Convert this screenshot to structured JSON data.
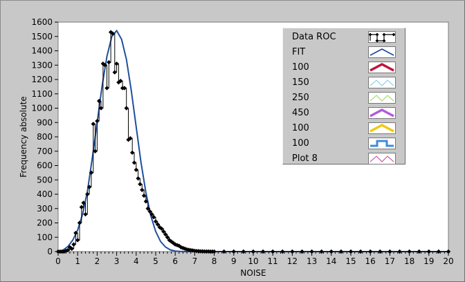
{
  "chart_data": {
    "type": "line",
    "xlabel": "NOISE",
    "ylabel": "Frequency absolute",
    "xlim": [
      0,
      20
    ],
    "ylim": [
      0,
      1600
    ],
    "x_ticks": [
      "0",
      "1",
      "2",
      "3",
      "4",
      "5",
      "6",
      "7",
      "8",
      "9",
      "10",
      "11",
      "12",
      "13",
      "14",
      "15",
      "16",
      "17",
      "18",
      "19",
      "20"
    ],
    "y_ticks": [
      "0",
      "100",
      "200",
      "300",
      "400",
      "500",
      "600",
      "700",
      "800",
      "900",
      "1000",
      "1100",
      "1200",
      "1300",
      "1400",
      "1500",
      "1600"
    ],
    "grid": false,
    "legend_position": "top-right",
    "legend": [
      {
        "label": "Data ROC",
        "color": "#000000",
        "style": "step-markers"
      },
      {
        "label": "FIT",
        "color": "#1f4e9c",
        "style": "line"
      },
      {
        "label": "100",
        "color": "#c0143c",
        "style": "thick-line"
      },
      {
        "label": "150",
        "color": "#78c8e6",
        "style": "thin-line"
      },
      {
        "label": "250",
        "color": "#96d25a",
        "style": "thin-line"
      },
      {
        "label": "450",
        "color": "#b45adc",
        "style": "thick-line"
      },
      {
        "label": "100",
        "color": "#f0c814",
        "style": "thick-line"
      },
      {
        "label": "100",
        "color": "#3c8cdc",
        "style": "step-line"
      },
      {
        "label": "Plot 8",
        "color": "#c83c96",
        "style": "thin-line"
      }
    ],
    "series": [
      {
        "name": "Data ROC",
        "color": "#000000",
        "x": [
          0,
          0.1,
          0.2,
          0.3,
          0.4,
          0.5,
          0.6,
          0.7,
          0.8,
          0.9,
          1.0,
          1.1,
          1.2,
          1.3,
          1.4,
          1.5,
          1.6,
          1.7,
          1.8,
          1.9,
          2.0,
          2.1,
          2.2,
          2.3,
          2.4,
          2.5,
          2.6,
          2.7,
          2.8,
          2.9,
          3.0,
          3.1,
          3.2,
          3.3,
          3.4,
          3.5,
          3.6,
          3.7,
          3.8,
          3.9,
          4.0,
          4.1,
          4.2,
          4.3,
          4.4,
          4.5,
          4.6,
          4.7,
          4.8,
          4.9,
          5.0,
          5.1,
          5.2,
          5.3,
          5.4,
          5.5,
          5.6,
          5.7,
          5.8,
          5.9,
          6.0,
          6.1,
          6.2,
          6.3,
          6.4,
          6.5,
          6.6,
          6.7,
          6.8,
          6.9,
          7.0,
          7.1,
          7.2,
          7.3,
          7.4,
          7.5,
          7.6,
          7.7,
          7.8,
          7.9,
          8.0,
          8.5,
          9.0,
          9.5,
          10.0,
          10.5,
          11.0,
          11.5,
          12.0,
          12.5,
          13.0,
          13.5,
          14.0,
          14.5,
          15.0,
          15.5,
          16.0,
          16.5,
          17.0,
          17.5,
          18.0,
          18.5,
          19.0,
          19.5,
          20.0
        ],
        "y": [
          0,
          0,
          0,
          0,
          5,
          10,
          30,
          20,
          50,
          130,
          80,
          200,
          310,
          340,
          260,
          400,
          450,
          550,
          890,
          700,
          910,
          1050,
          1000,
          1310,
          1300,
          1140,
          1320,
          1530,
          1520,
          1250,
          1310,
          1180,
          1190,
          1140,
          1140,
          1000,
          780,
          790,
          690,
          620,
          570,
          510,
          470,
          430,
          390,
          350,
          300,
          280,
          260,
          240,
          210,
          190,
          170,
          160,
          140,
          120,
          100,
          80,
          70,
          60,
          50,
          45,
          40,
          30,
          25,
          20,
          15,
          12,
          10,
          8,
          5,
          4,
          3,
          2,
          2,
          1,
          1,
          1,
          0,
          0,
          0,
          0,
          0,
          0,
          0,
          0,
          0,
          0,
          0,
          0,
          0,
          0,
          0,
          0,
          0,
          0,
          0,
          0,
          0,
          0,
          0,
          0,
          0,
          0,
          0
        ]
      },
      {
        "name": "FIT",
        "color": "#1f4e9c",
        "x": [
          0,
          0.25,
          0.5,
          0.75,
          1.0,
          1.25,
          1.5,
          1.75,
          2.0,
          2.25,
          2.5,
          2.75,
          3.0,
          3.25,
          3.5,
          3.75,
          4.0,
          4.25,
          4.5,
          4.75,
          5.0,
          5.25,
          5.5,
          5.75,
          6.0,
          6.25,
          6.5,
          6.75,
          7.0,
          7.5,
          8.0,
          9.0,
          10.0,
          12.0,
          14.0,
          16.0,
          18.0,
          20.0
        ],
        "y": [
          0,
          10,
          35,
          80,
          150,
          260,
          420,
          650,
          900,
          1150,
          1360,
          1500,
          1540,
          1480,
          1340,
          1120,
          870,
          620,
          410,
          250,
          140,
          70,
          32,
          12,
          4,
          1,
          0,
          0,
          0,
          0,
          0,
          0,
          0,
          0,
          0,
          0,
          0,
          0
        ]
      }
    ]
  }
}
